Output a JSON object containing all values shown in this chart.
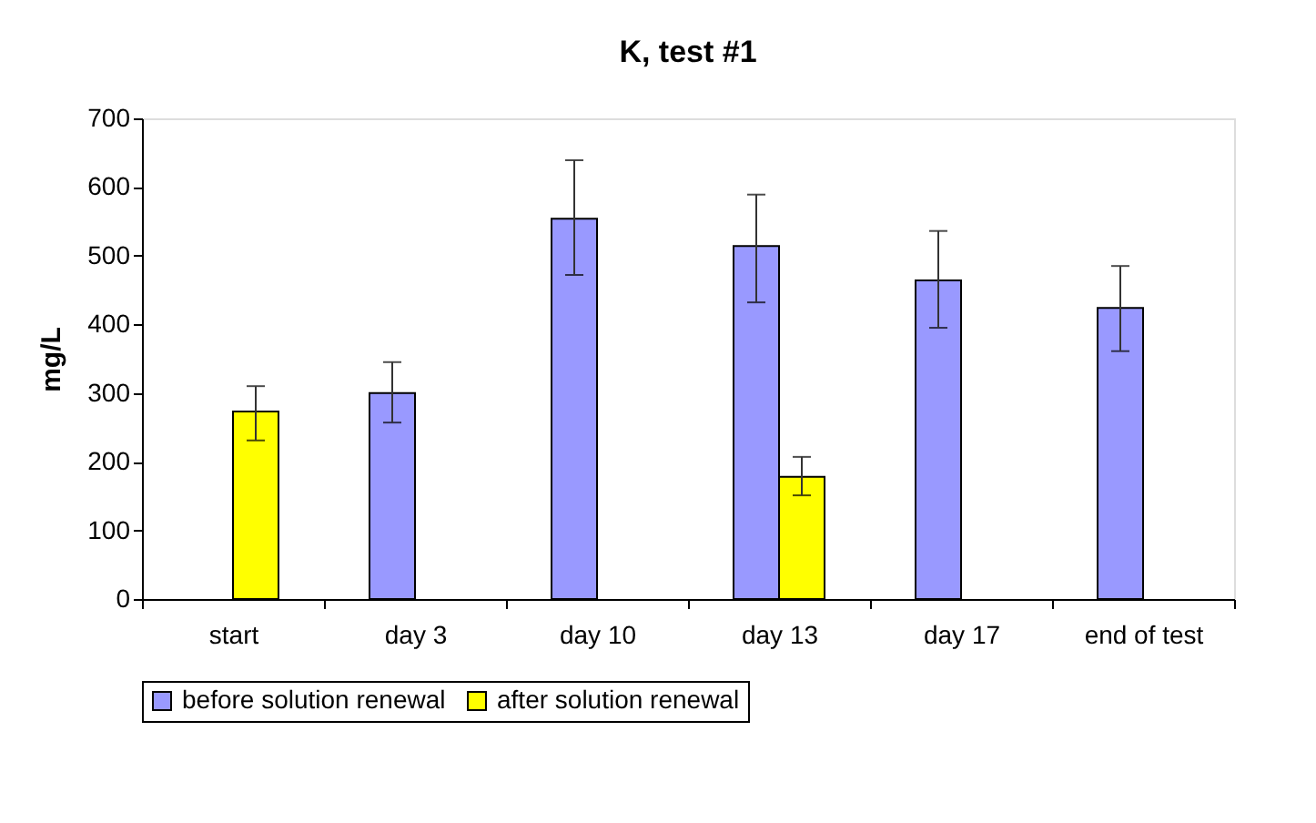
{
  "chart_data": {
    "type": "bar",
    "title": "K,  test #1",
    "ylabel": "mg/L",
    "categories": [
      "start",
      "day 3",
      "day 10",
      "day 13",
      "day 17",
      "end of test"
    ],
    "series": [
      {
        "name": "before solution renewal",
        "color": "#9999ff",
        "values": [
          null,
          300,
          554,
          514,
          464,
          424
        ],
        "errors": [
          null,
          [
            257,
            345
          ],
          [
            472,
            639
          ],
          [
            432,
            589
          ],
          [
            395,
            536
          ],
          [
            361,
            485
          ]
        ]
      },
      {
        "name": "after solution renewal",
        "color": "#ffff00",
        "values": [
          273,
          null,
          null,
          178,
          null,
          null
        ],
        "errors": [
          [
            231,
            310
          ],
          null,
          null,
          [
            151,
            207
          ],
          null,
          null
        ]
      }
    ],
    "ylim": [
      0,
      700
    ],
    "yticks": [
      0,
      100,
      200,
      300,
      400,
      500,
      600,
      700
    ],
    "grid": false,
    "legend": "bottom"
  }
}
